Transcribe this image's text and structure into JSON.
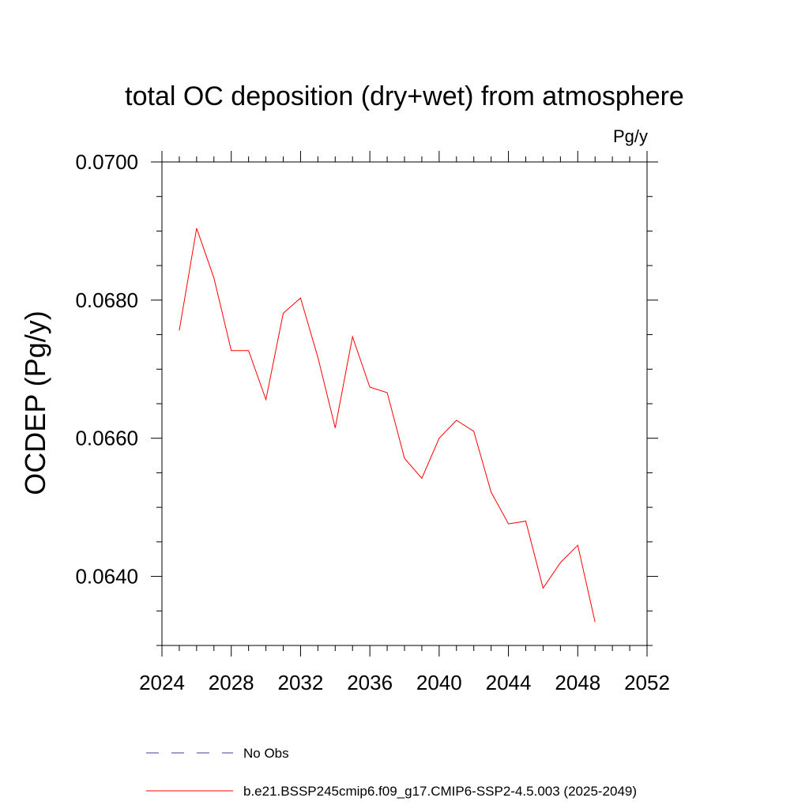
{
  "chart_data": {
    "type": "line",
    "title": "total OC deposition (dry+wet) from atmosphere",
    "units_label": "Pg/y",
    "ylabel": "OCDEP  (Pg/y)",
    "xlabel": "",
    "xlim": [
      2024,
      2052
    ],
    "ylim": [
      0.063,
      0.07
    ],
    "x_major_ticks": [
      2024,
      2028,
      2032,
      2036,
      2040,
      2044,
      2048,
      2052
    ],
    "x_minor_step": 1,
    "y_major_ticks": [
      0.064,
      0.066,
      0.068,
      0.07
    ],
    "y_tick_labels": [
      "0.0640",
      "0.0660",
      "0.0680",
      "0.0700"
    ],
    "y_minor_step": 0.0005,
    "grid": false,
    "legend_position": "bottom",
    "series": [
      {
        "name": "b.e21.BSSP245cmip6.f09_g17.CMIP6-SSP2-4.5.003 (2025-2049)",
        "color": "#ff0000",
        "x": [
          2025,
          2026,
          2027,
          2028,
          2029,
          2030,
          2031,
          2032,
          2033,
          2034,
          2035,
          2036,
          2037,
          2038,
          2039,
          2040,
          2041,
          2042,
          2043,
          2044,
          2045,
          2046,
          2047,
          2048,
          2049
        ],
        "values": [
          0.06756,
          0.06904,
          0.06832,
          0.06727,
          0.06727,
          0.06656,
          0.06781,
          0.06803,
          0.06717,
          0.06615,
          0.06747,
          0.06674,
          0.06666,
          0.06571,
          0.06542,
          0.066,
          0.06626,
          0.0661,
          0.06522,
          0.06476,
          0.0648,
          0.06383,
          0.0642,
          0.06445,
          0.06334
        ]
      }
    ],
    "legend": [
      {
        "label": "No Obs",
        "color": "#3f3f8f",
        "dash": true
      },
      {
        "label": "b.e21.BSSP245cmip6.f09_g17.CMIP6-SSP2-4.5.003 (2025-2049)",
        "color": "#ff0000",
        "dash": false
      }
    ]
  }
}
